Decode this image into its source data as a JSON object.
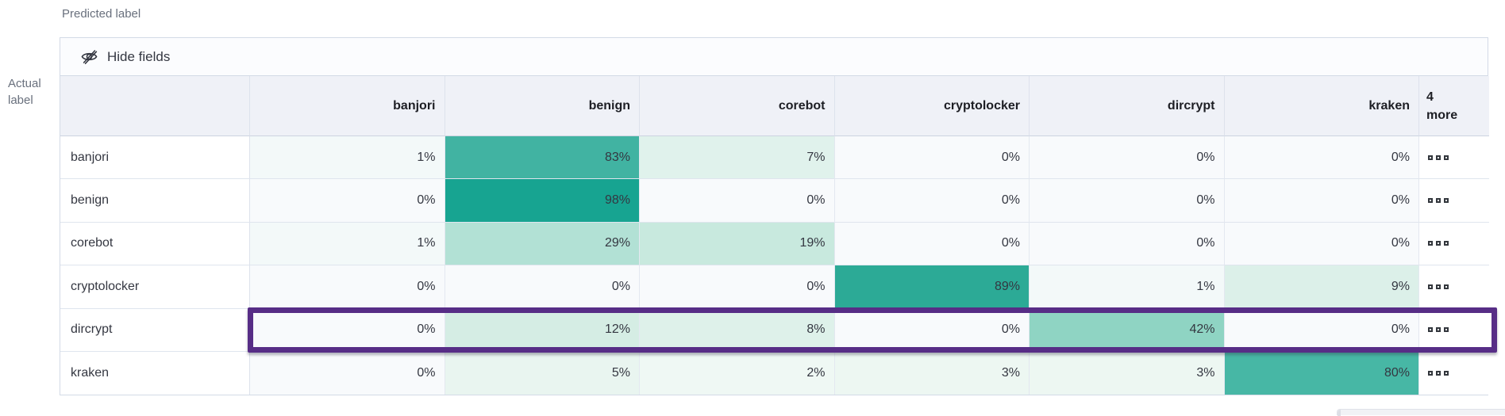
{
  "axes": {
    "predicted_label": "Predicted label",
    "actual_label_line1": "Actual",
    "actual_label_line2": "label"
  },
  "toolbar": {
    "hide_fields_label": "Hide fields",
    "icon": "eye-closed-icon"
  },
  "matrix": {
    "columns": [
      "banjori",
      "benign",
      "corebot",
      "cryptolocker",
      "dircrypt",
      "kraken"
    ],
    "more_column": {
      "count": "4",
      "label": "more"
    },
    "row_actions_icon": "boxes-horizontal-icon",
    "rows": [
      {
        "label": "banjori",
        "cells": [
          {
            "value": "1%",
            "bg": "#f3f9f9"
          },
          {
            "value": "83%",
            "bg": "#41b3a2"
          },
          {
            "value": "7%",
            "bg": "#e0f2ec"
          },
          {
            "value": "0%",
            "bg": "#f8fafc"
          },
          {
            "value": "0%",
            "bg": "#f8fafc"
          },
          {
            "value": "0%",
            "bg": "#f8fafc"
          }
        ]
      },
      {
        "label": "benign",
        "cells": [
          {
            "value": "0%",
            "bg": "#f8fafc"
          },
          {
            "value": "98%",
            "bg": "#17a491"
          },
          {
            "value": "0%",
            "bg": "#f8fafc"
          },
          {
            "value": "0%",
            "bg": "#f8fafc"
          },
          {
            "value": "0%",
            "bg": "#f8fafc"
          },
          {
            "value": "0%",
            "bg": "#f8fafc"
          }
        ]
      },
      {
        "label": "corebot",
        "cells": [
          {
            "value": "1%",
            "bg": "#f3f9f9"
          },
          {
            "value": "29%",
            "bg": "#b2e1d5"
          },
          {
            "value": "19%",
            "bg": "#c8e9de"
          },
          {
            "value": "0%",
            "bg": "#f8fafc"
          },
          {
            "value": "0%",
            "bg": "#f8fafc"
          },
          {
            "value": "0%",
            "bg": "#f8fafc"
          }
        ]
      },
      {
        "label": "cryptolocker",
        "cells": [
          {
            "value": "0%",
            "bg": "#f8fafc"
          },
          {
            "value": "0%",
            "bg": "#f8fafc"
          },
          {
            "value": "0%",
            "bg": "#f8fafc"
          },
          {
            "value": "89%",
            "bg": "#2caa96"
          },
          {
            "value": "1%",
            "bg": "#f3f9f9"
          },
          {
            "value": "9%",
            "bg": "#dcf0e9"
          }
        ]
      },
      {
        "label": "dircrypt",
        "cells": [
          {
            "value": "0%",
            "bg": "#f8fafc"
          },
          {
            "value": "12%",
            "bg": "#d5ede4"
          },
          {
            "value": "8%",
            "bg": "#def1ea"
          },
          {
            "value": "0%",
            "bg": "#f8fafc"
          },
          {
            "value": "42%",
            "bg": "#8fd4c3"
          },
          {
            "value": "0%",
            "bg": "#f8fafc"
          }
        ]
      },
      {
        "label": "kraken",
        "cells": [
          {
            "value": "0%",
            "bg": "#f8fafc"
          },
          {
            "value": "5%",
            "bg": "#e9f5f0"
          },
          {
            "value": "2%",
            "bg": "#eff8f4"
          },
          {
            "value": "3%",
            "bg": "#edf7f2"
          },
          {
            "value": "3%",
            "bg": "#edf7f2"
          },
          {
            "value": "80%",
            "bg": "#47b7a5"
          }
        ]
      }
    ]
  },
  "highlight": {
    "row": "dircrypt",
    "color": "#572d86"
  },
  "chart_data": {
    "type": "heatmap",
    "xlabel": "Predicted label",
    "ylabel": "Actual label",
    "x_categories": [
      "banjori",
      "benign",
      "corebot",
      "cryptolocker",
      "dircrypt",
      "kraken"
    ],
    "y_categories": [
      "banjori",
      "benign",
      "corebot",
      "cryptolocker",
      "dircrypt",
      "kraken"
    ],
    "extra_column_label": "4 more",
    "values_percent": [
      [
        1,
        83,
        7,
        0,
        0,
        0
      ],
      [
        0,
        98,
        0,
        0,
        0,
        0
      ],
      [
        1,
        29,
        19,
        0,
        0,
        0
      ],
      [
        0,
        0,
        0,
        89,
        1,
        9
      ],
      [
        0,
        12,
        8,
        0,
        42,
        0
      ],
      [
        0,
        5,
        2,
        3,
        3,
        80
      ]
    ],
    "highlighted_row": "dircrypt",
    "heat_color_max": "#17a491"
  }
}
